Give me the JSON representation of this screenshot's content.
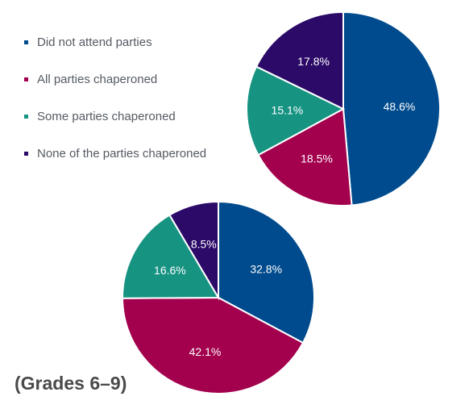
{
  "colors": {
    "did_not_attend": "#004b8d",
    "all_chaperoned": "#a3004d",
    "some_chaperoned": "#179382",
    "none_chaperoned": "#2b0a68"
  },
  "legend": [
    {
      "label": "Did not attend parties",
      "color": "#004b8d"
    },
    {
      "label": "All parties chaperoned",
      "color": "#a3004d"
    },
    {
      "label": "Some parties chaperoned",
      "color": "#179382"
    },
    {
      "label": "None of the parties chaperoned",
      "color": "#2b0a68"
    }
  ],
  "chart_data": [
    {
      "type": "pie",
      "title": "",
      "series": [
        {
          "name": "Did not attend parties",
          "value": 48.6,
          "label": "48.6%",
          "color": "#004b8d"
        },
        {
          "name": "All parties chaperoned",
          "value": 18.5,
          "label": "18.5%",
          "color": "#a3004d"
        },
        {
          "name": "Some parties chaperoned",
          "value": 15.1,
          "label": "15.1%",
          "color": "#179382"
        },
        {
          "name": "None of the parties chaperoned",
          "value": 17.8,
          "label": "17.8%",
          "color": "#2b0a68"
        }
      ]
    },
    {
      "type": "pie",
      "title": "(Grades 6–9)",
      "series": [
        {
          "name": "Did not attend parties",
          "value": 32.8,
          "label": "32.8%",
          "color": "#004b8d"
        },
        {
          "name": "All parties chaperoned",
          "value": 42.1,
          "label": "42.1%",
          "color": "#a3004d"
        },
        {
          "name": "Some parties chaperoned",
          "value": 16.6,
          "label": "16.6%",
          "color": "#179382"
        },
        {
          "name": "None of the parties chaperoned",
          "value": 8.5,
          "label": "8.5%",
          "color": "#2b0a68"
        }
      ]
    }
  ]
}
